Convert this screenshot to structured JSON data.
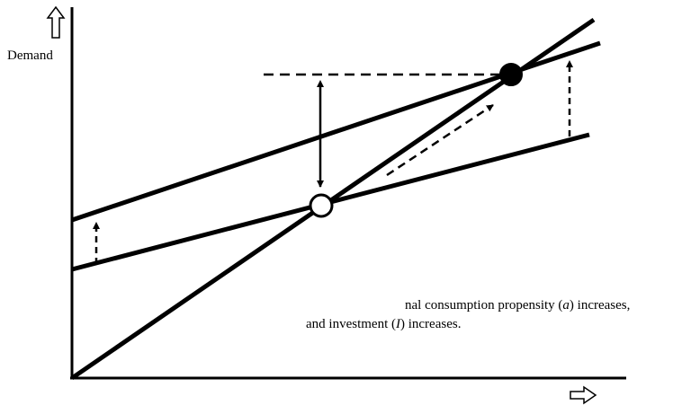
{
  "labels": {
    "y_axis": "Demand"
  },
  "note": {
    "line1_before": "nal consumption propensity (",
    "line1_var": "a",
    "line1_after": ") increases,",
    "line2_before": "and investment (",
    "line2_var": "I",
    "line2_after": ") increases."
  },
  "icons": {
    "y_axis_arrow": "hollow-up-arrow-icon",
    "x_axis_arrow": "hollow-right-arrow-icon"
  }
}
